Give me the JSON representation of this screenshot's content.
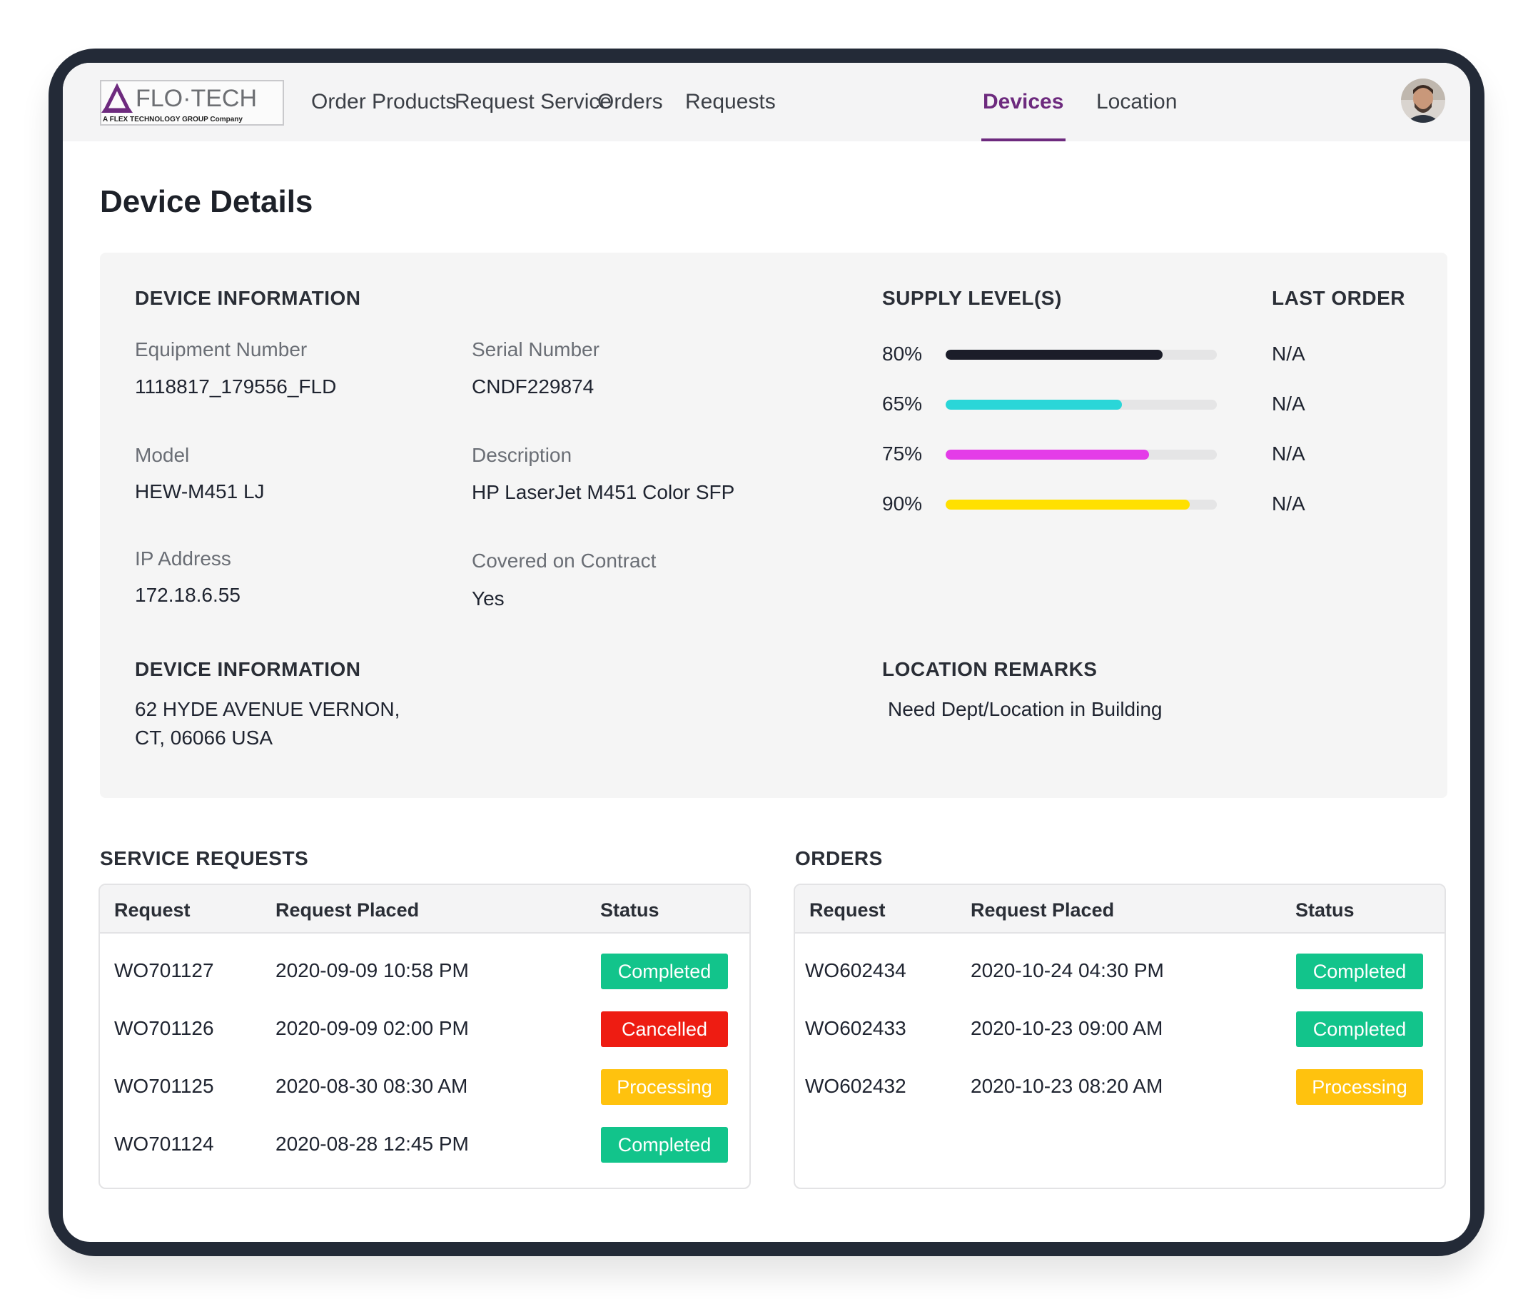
{
  "brand": {
    "logo_text": "FLO·TECH",
    "logo_subtext": "A FLEX TECHNOLOGY GROUP Company",
    "accent_color": "#6d2a7e"
  },
  "nav": {
    "items": [
      {
        "label": "Order Products"
      },
      {
        "label": "Request Service"
      },
      {
        "label": "Orders"
      },
      {
        "label": "Requests"
      },
      {
        "label": "Devices",
        "active": true
      },
      {
        "label": "Location"
      }
    ],
    "avatar_icon": "user-avatar"
  },
  "page": {
    "title": "Device Details"
  },
  "device_info": {
    "heading": "DEVICE INFORMATION",
    "equipment_number": {
      "label": "Equipment Number",
      "value": "1118817_179556_FLD"
    },
    "serial_number": {
      "label": "Serial Number",
      "value": "CNDF229874"
    },
    "model": {
      "label": "Model",
      "value": "HEW-M451 LJ"
    },
    "description": {
      "label": "Description",
      "value": "HP LaserJet M451 Color SFP"
    },
    "ip_address": {
      "label": "IP Address",
      "value": "172.18.6.55"
    },
    "covered_on_contract": {
      "label": "Covered on Contract",
      "value": "Yes"
    }
  },
  "supply": {
    "heading": "SUPPLY LEVEL(S)",
    "last_order_heading": "LAST ORDER",
    "levels": [
      {
        "percent_label": "80%",
        "percent": 80,
        "color": "#1b1d29",
        "last_order": "N/A"
      },
      {
        "percent_label": "65%",
        "percent": 65,
        "color": "#2ad6d8",
        "last_order": "N/A"
      },
      {
        "percent_label": "75%",
        "percent": 75,
        "color": "#e43ce8",
        "last_order": "N/A"
      },
      {
        "percent_label": "90%",
        "percent": 90,
        "color": "#ffe000",
        "last_order": "N/A"
      }
    ]
  },
  "address": {
    "heading": "DEVICE INFORMATION",
    "line1": "62 HYDE AVENUE VERNON,",
    "line2": "CT, 06066 USA"
  },
  "location_remarks": {
    "heading": "LOCATION REMARKS",
    "value": "Need Dept/Location in Building"
  },
  "service_requests": {
    "title": "SERVICE REQUESTS",
    "columns": [
      "Request",
      "Request Placed",
      "Status"
    ],
    "rows": [
      {
        "request": "WO701127",
        "placed": "2020-09-09 10:58 PM",
        "status": "Completed",
        "status_type": "completed"
      },
      {
        "request": "WO701126",
        "placed": "2020-09-09 02:00 PM",
        "status": "Cancelled",
        "status_type": "cancelled"
      },
      {
        "request": "WO701125",
        "placed": "2020-08-30 08:30 AM",
        "status": "Processing",
        "status_type": "processing"
      },
      {
        "request": "WO701124",
        "placed": "2020-08-28 12:45 PM",
        "status": "Completed",
        "status_type": "completed"
      }
    ]
  },
  "orders": {
    "title": "ORDERS",
    "columns": [
      "Request",
      "Request Placed",
      "Status"
    ],
    "rows": [
      {
        "request": "WO602434",
        "placed": "2020-10-24 04:30 PM",
        "status": "Completed",
        "status_type": "completed"
      },
      {
        "request": "WO602433",
        "placed": "2020-10-23 09:00 AM",
        "status": "Completed",
        "status_type": "completed"
      },
      {
        "request": "WO602432",
        "placed": "2020-10-23 08:20 AM",
        "status": "Processing",
        "status_type": "processing"
      }
    ]
  },
  "status_colors": {
    "completed": "#12c48b",
    "cancelled": "#ee1c12",
    "processing": "#ffc20e"
  }
}
